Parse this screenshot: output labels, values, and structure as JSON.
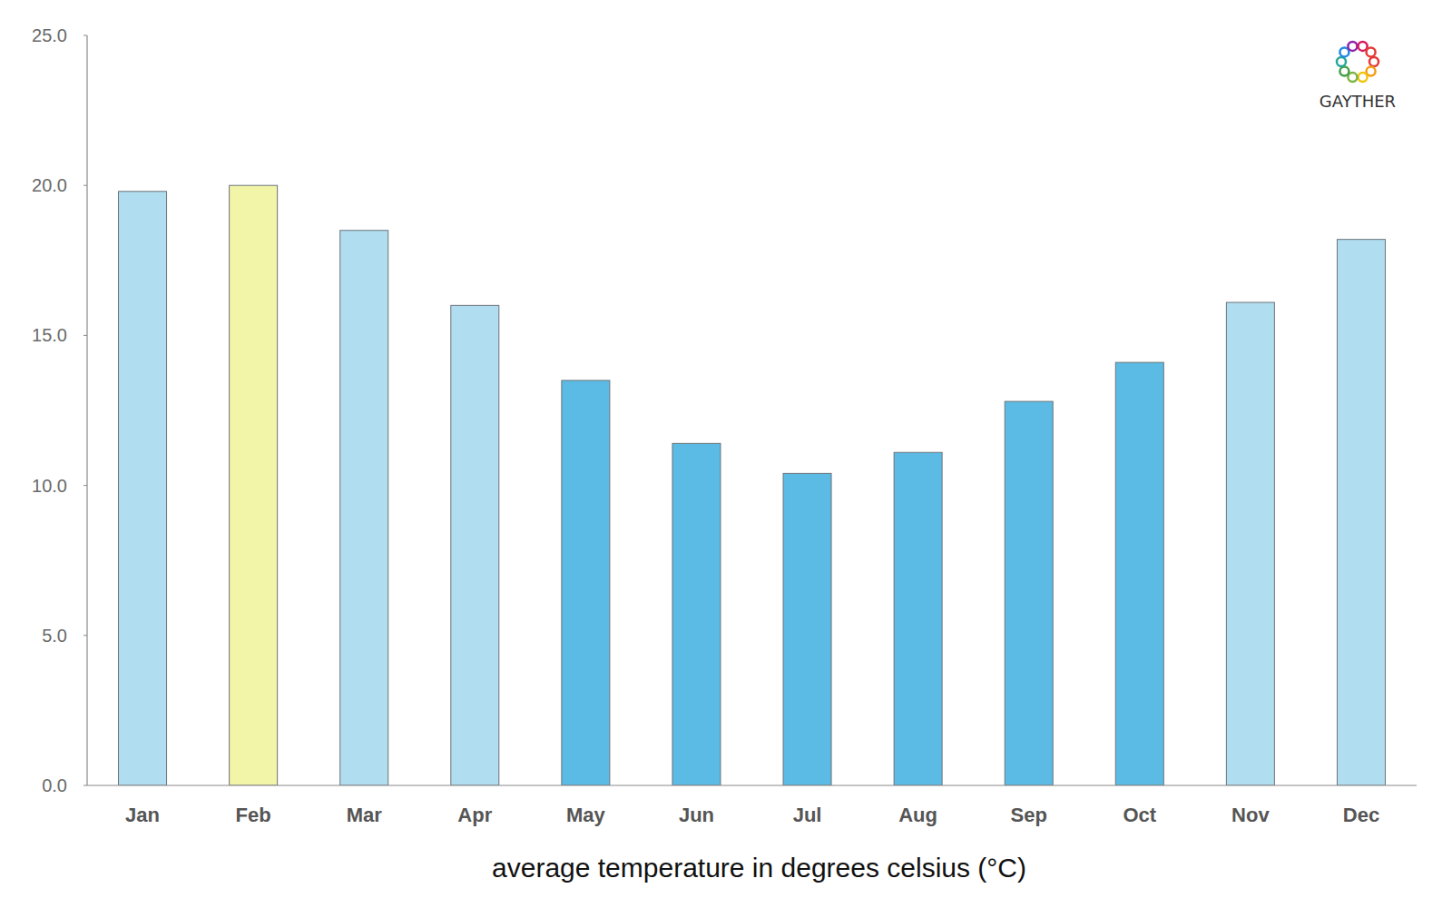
{
  "chart_data": {
    "type": "bar",
    "x_label": "average temperature in degrees celsius (°C)",
    "annotation": "GAYTHER",
    "categories": [
      "Jan",
      "Feb",
      "Mar",
      "Apr",
      "May",
      "Jun",
      "Jul",
      "Aug",
      "Sep",
      "Oct",
      "Nov",
      "Dec"
    ],
    "values": [
      19.8,
      20.0,
      18.5,
      16.0,
      13.5,
      11.4,
      10.4,
      11.1,
      12.8,
      14.1,
      16.1,
      18.2
    ],
    "colors": [
      "#b0def0",
      "#f2f4a8",
      "#b0def0",
      "#b0def0",
      "#5bbbe4",
      "#5bbbe4",
      "#5bbbe4",
      "#5bbbe4",
      "#5bbbe4",
      "#5bbbe4",
      "#b0def0",
      "#b0def0"
    ],
    "ylim": [
      0,
      25
    ],
    "yticks": [
      {
        "value": 0,
        "label": "0.0"
      },
      {
        "value": 5,
        "label": "5.0"
      },
      {
        "value": 10,
        "label": "10.0"
      },
      {
        "value": 15,
        "label": "15.0"
      },
      {
        "value": 20,
        "label": "20.0"
      },
      {
        "value": 25,
        "label": "25.0"
      }
    ],
    "grid": false
  }
}
